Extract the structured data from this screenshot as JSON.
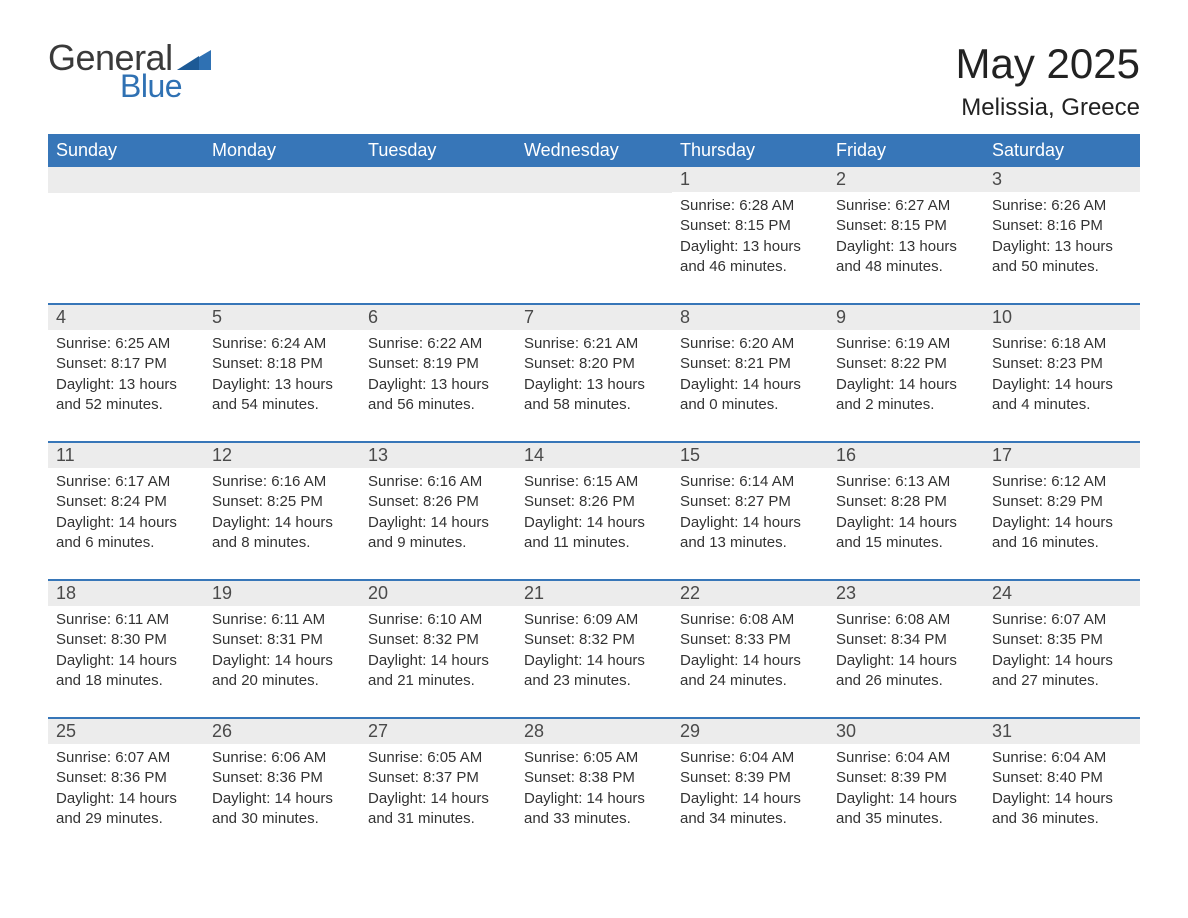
{
  "logo": {
    "text1": "General",
    "text2": "Blue"
  },
  "header": {
    "month_title": "May 2025",
    "location": "Melissia, Greece"
  },
  "colors": {
    "header_bg": "#3776b8",
    "header_text": "#ffffff",
    "daynum_bg": "#ececec",
    "daynum_text": "#4a4a4a",
    "body_text": "#333333",
    "rule": "#3776b8",
    "logo_blue": "#2f71b3",
    "logo_dark": "#3a3a3a",
    "page_bg": "#ffffff"
  },
  "weekdays": [
    "Sunday",
    "Monday",
    "Tuesday",
    "Wednesday",
    "Thursday",
    "Friday",
    "Saturday"
  ],
  "weeks": [
    [
      {
        "empty": true
      },
      {
        "empty": true
      },
      {
        "empty": true
      },
      {
        "empty": true
      },
      {
        "day": "1",
        "sunrise": "Sunrise: 6:28 AM",
        "sunset": "Sunset: 8:15 PM",
        "daylight1": "Daylight: 13 hours",
        "daylight2": "and 46 minutes."
      },
      {
        "day": "2",
        "sunrise": "Sunrise: 6:27 AM",
        "sunset": "Sunset: 8:15 PM",
        "daylight1": "Daylight: 13 hours",
        "daylight2": "and 48 minutes."
      },
      {
        "day": "3",
        "sunrise": "Sunrise: 6:26 AM",
        "sunset": "Sunset: 8:16 PM",
        "daylight1": "Daylight: 13 hours",
        "daylight2": "and 50 minutes."
      }
    ],
    [
      {
        "day": "4",
        "sunrise": "Sunrise: 6:25 AM",
        "sunset": "Sunset: 8:17 PM",
        "daylight1": "Daylight: 13 hours",
        "daylight2": "and 52 minutes."
      },
      {
        "day": "5",
        "sunrise": "Sunrise: 6:24 AM",
        "sunset": "Sunset: 8:18 PM",
        "daylight1": "Daylight: 13 hours",
        "daylight2": "and 54 minutes."
      },
      {
        "day": "6",
        "sunrise": "Sunrise: 6:22 AM",
        "sunset": "Sunset: 8:19 PM",
        "daylight1": "Daylight: 13 hours",
        "daylight2": "and 56 minutes."
      },
      {
        "day": "7",
        "sunrise": "Sunrise: 6:21 AM",
        "sunset": "Sunset: 8:20 PM",
        "daylight1": "Daylight: 13 hours",
        "daylight2": "and 58 minutes."
      },
      {
        "day": "8",
        "sunrise": "Sunrise: 6:20 AM",
        "sunset": "Sunset: 8:21 PM",
        "daylight1": "Daylight: 14 hours",
        "daylight2": "and 0 minutes."
      },
      {
        "day": "9",
        "sunrise": "Sunrise: 6:19 AM",
        "sunset": "Sunset: 8:22 PM",
        "daylight1": "Daylight: 14 hours",
        "daylight2": "and 2 minutes."
      },
      {
        "day": "10",
        "sunrise": "Sunrise: 6:18 AM",
        "sunset": "Sunset: 8:23 PM",
        "daylight1": "Daylight: 14 hours",
        "daylight2": "and 4 minutes."
      }
    ],
    [
      {
        "day": "11",
        "sunrise": "Sunrise: 6:17 AM",
        "sunset": "Sunset: 8:24 PM",
        "daylight1": "Daylight: 14 hours",
        "daylight2": "and 6 minutes."
      },
      {
        "day": "12",
        "sunrise": "Sunrise: 6:16 AM",
        "sunset": "Sunset: 8:25 PM",
        "daylight1": "Daylight: 14 hours",
        "daylight2": "and 8 minutes."
      },
      {
        "day": "13",
        "sunrise": "Sunrise: 6:16 AM",
        "sunset": "Sunset: 8:26 PM",
        "daylight1": "Daylight: 14 hours",
        "daylight2": "and 9 minutes."
      },
      {
        "day": "14",
        "sunrise": "Sunrise: 6:15 AM",
        "sunset": "Sunset: 8:26 PM",
        "daylight1": "Daylight: 14 hours",
        "daylight2": "and 11 minutes."
      },
      {
        "day": "15",
        "sunrise": "Sunrise: 6:14 AM",
        "sunset": "Sunset: 8:27 PM",
        "daylight1": "Daylight: 14 hours",
        "daylight2": "and 13 minutes."
      },
      {
        "day": "16",
        "sunrise": "Sunrise: 6:13 AM",
        "sunset": "Sunset: 8:28 PM",
        "daylight1": "Daylight: 14 hours",
        "daylight2": "and 15 minutes."
      },
      {
        "day": "17",
        "sunrise": "Sunrise: 6:12 AM",
        "sunset": "Sunset: 8:29 PM",
        "daylight1": "Daylight: 14 hours",
        "daylight2": "and 16 minutes."
      }
    ],
    [
      {
        "day": "18",
        "sunrise": "Sunrise: 6:11 AM",
        "sunset": "Sunset: 8:30 PM",
        "daylight1": "Daylight: 14 hours",
        "daylight2": "and 18 minutes."
      },
      {
        "day": "19",
        "sunrise": "Sunrise: 6:11 AM",
        "sunset": "Sunset: 8:31 PM",
        "daylight1": "Daylight: 14 hours",
        "daylight2": "and 20 minutes."
      },
      {
        "day": "20",
        "sunrise": "Sunrise: 6:10 AM",
        "sunset": "Sunset: 8:32 PM",
        "daylight1": "Daylight: 14 hours",
        "daylight2": "and 21 minutes."
      },
      {
        "day": "21",
        "sunrise": "Sunrise: 6:09 AM",
        "sunset": "Sunset: 8:32 PM",
        "daylight1": "Daylight: 14 hours",
        "daylight2": "and 23 minutes."
      },
      {
        "day": "22",
        "sunrise": "Sunrise: 6:08 AM",
        "sunset": "Sunset: 8:33 PM",
        "daylight1": "Daylight: 14 hours",
        "daylight2": "and 24 minutes."
      },
      {
        "day": "23",
        "sunrise": "Sunrise: 6:08 AM",
        "sunset": "Sunset: 8:34 PM",
        "daylight1": "Daylight: 14 hours",
        "daylight2": "and 26 minutes."
      },
      {
        "day": "24",
        "sunrise": "Sunrise: 6:07 AM",
        "sunset": "Sunset: 8:35 PM",
        "daylight1": "Daylight: 14 hours",
        "daylight2": "and 27 minutes."
      }
    ],
    [
      {
        "day": "25",
        "sunrise": "Sunrise: 6:07 AM",
        "sunset": "Sunset: 8:36 PM",
        "daylight1": "Daylight: 14 hours",
        "daylight2": "and 29 minutes."
      },
      {
        "day": "26",
        "sunrise": "Sunrise: 6:06 AM",
        "sunset": "Sunset: 8:36 PM",
        "daylight1": "Daylight: 14 hours",
        "daylight2": "and 30 minutes."
      },
      {
        "day": "27",
        "sunrise": "Sunrise: 6:05 AM",
        "sunset": "Sunset: 8:37 PM",
        "daylight1": "Daylight: 14 hours",
        "daylight2": "and 31 minutes."
      },
      {
        "day": "28",
        "sunrise": "Sunrise: 6:05 AM",
        "sunset": "Sunset: 8:38 PM",
        "daylight1": "Daylight: 14 hours",
        "daylight2": "and 33 minutes."
      },
      {
        "day": "29",
        "sunrise": "Sunrise: 6:04 AM",
        "sunset": "Sunset: 8:39 PM",
        "daylight1": "Daylight: 14 hours",
        "daylight2": "and 34 minutes."
      },
      {
        "day": "30",
        "sunrise": "Sunrise: 6:04 AM",
        "sunset": "Sunset: 8:39 PM",
        "daylight1": "Daylight: 14 hours",
        "daylight2": "and 35 minutes."
      },
      {
        "day": "31",
        "sunrise": "Sunrise: 6:04 AM",
        "sunset": "Sunset: 8:40 PM",
        "daylight1": "Daylight: 14 hours",
        "daylight2": "and 36 minutes."
      }
    ]
  ]
}
